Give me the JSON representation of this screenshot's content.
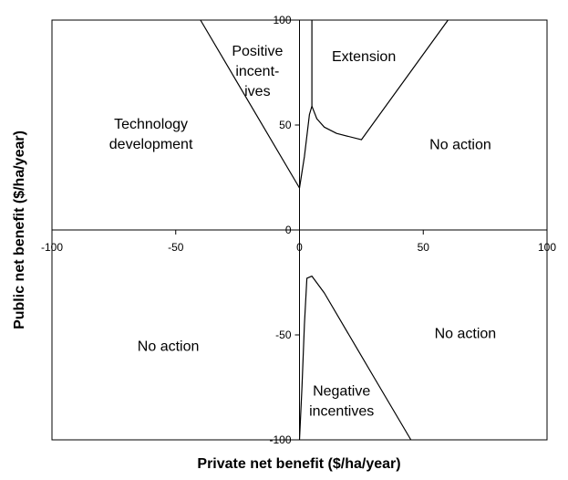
{
  "chart_data": {
    "type": "line",
    "title": "",
    "xlabel": "Private net benefit ($/ha/year)",
    "ylabel": "Public net benefit ($/ha/year)",
    "xlim": [
      -100,
      100
    ],
    "ylim": [
      -100,
      100
    ],
    "x_ticks": [
      -100,
      -50,
      0,
      50,
      100
    ],
    "y_ticks": [
      -100,
      -50,
      0,
      50,
      100
    ],
    "x_tick_labels": [
      "-100",
      "-50",
      "0",
      "50",
      "100"
    ],
    "y_tick_labels": [
      "-100",
      "-50",
      "0",
      "50",
      "100"
    ],
    "grid": false,
    "series": [
      {
        "values": [
          [
            -40,
            100
          ],
          [
            0,
            20
          ]
        ]
      },
      {
        "values": [
          [
            0,
            20
          ],
          [
            2,
            35
          ],
          [
            4,
            55
          ],
          [
            5,
            59
          ],
          [
            7,
            53
          ],
          [
            10,
            49
          ],
          [
            15,
            46
          ],
          [
            25,
            43
          ],
          [
            60,
            100
          ]
        ]
      },
      {
        "values": [
          [
            5,
            59
          ],
          [
            5,
            100
          ]
        ]
      },
      {
        "values": [
          [
            0,
            -100
          ],
          [
            1,
            -75
          ],
          [
            2,
            -45
          ],
          [
            3,
            -23
          ],
          [
            5,
            -22
          ],
          [
            10,
            -30
          ],
          [
            20,
            -50
          ],
          [
            30,
            -70
          ],
          [
            45,
            -100
          ]
        ]
      }
    ],
    "annotations": [
      {
        "lines": [
          "Technology",
          "development"
        ],
        "x": -60,
        "y": 46
      },
      {
        "lines": [
          "Positive",
          "incent-",
          "ives"
        ],
        "x": -17,
        "y": 76
      },
      {
        "lines": [
          "Extension"
        ],
        "x": 26,
        "y": 83
      },
      {
        "lines": [
          "No action"
        ],
        "x": 65,
        "y": 41
      },
      {
        "lines": [
          "No action"
        ],
        "x": -53,
        "y": -55
      },
      {
        "lines": [
          "No action"
        ],
        "x": 67,
        "y": -49
      },
      {
        "lines": [
          "Negative",
          "incentives"
        ],
        "x": 17,
        "y": -81
      }
    ]
  }
}
